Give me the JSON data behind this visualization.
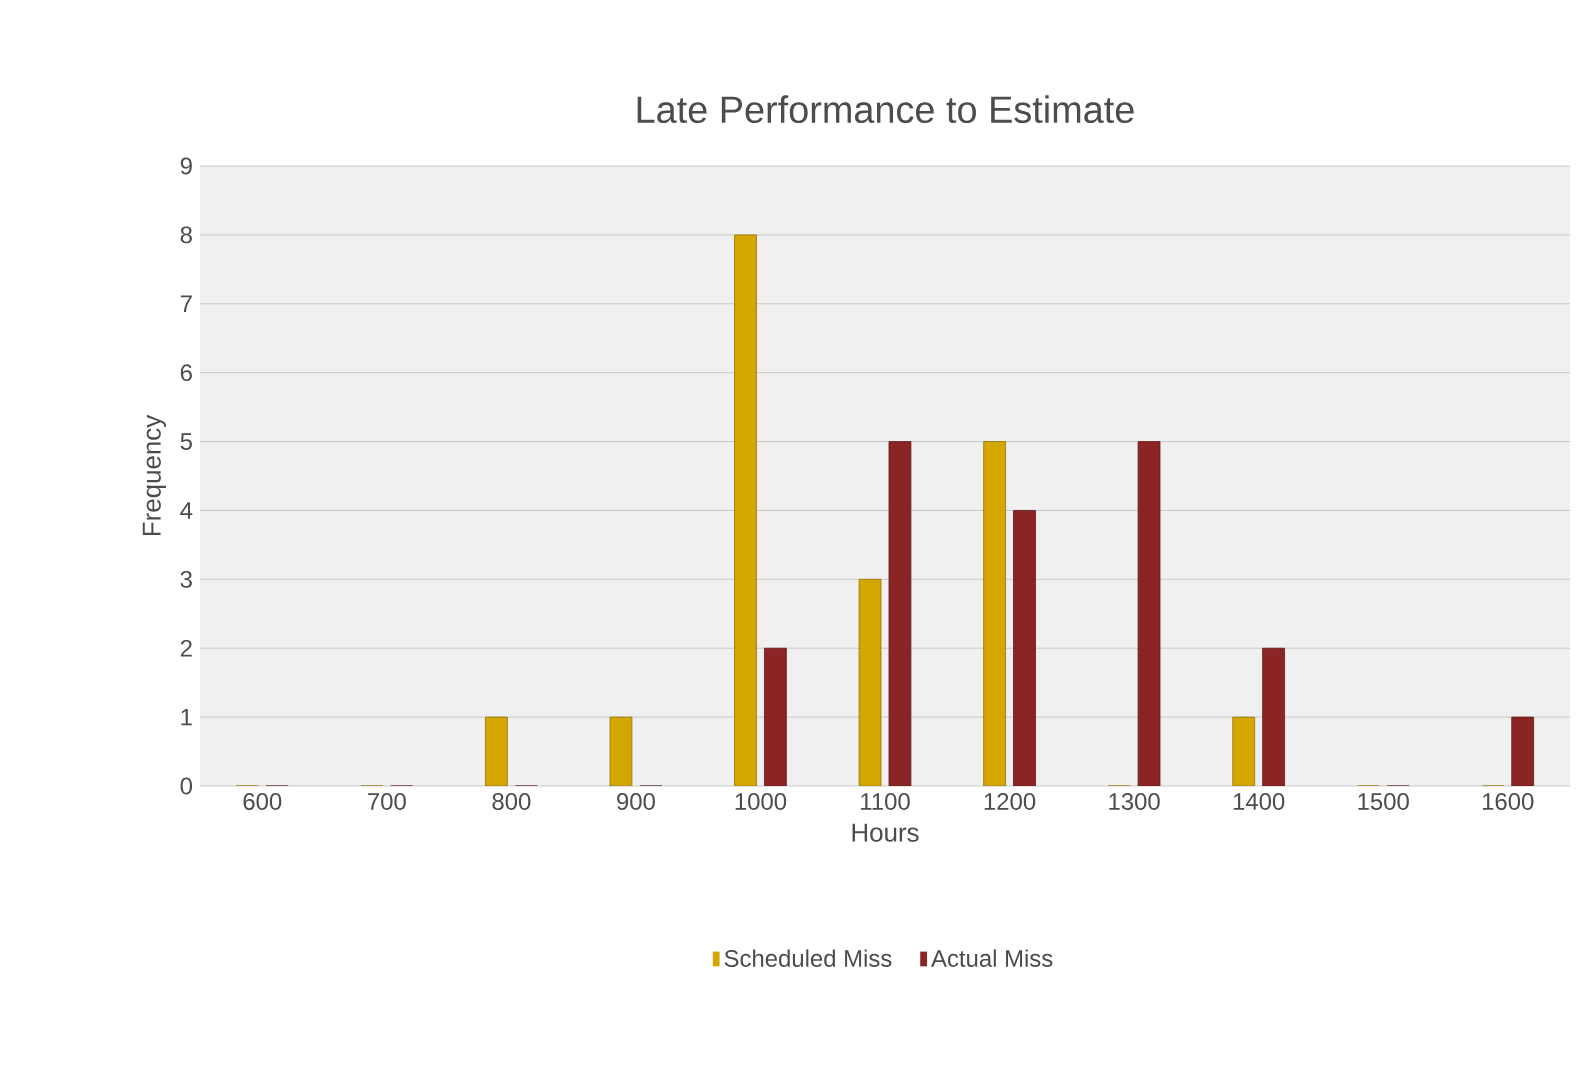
{
  "chart_data": {
    "type": "bar",
    "title": "Late Performance to Estimate",
    "xlabel": "Hours",
    "ylabel": "Frequency",
    "categories": [
      "600",
      "700",
      "800",
      "900",
      "1000",
      "1100",
      "1200",
      "1300",
      "1400",
      "1500",
      "1600"
    ],
    "series": [
      {
        "name": "Scheduled Miss",
        "color": "#d4a600",
        "values": [
          0,
          0,
          1,
          1,
          8,
          3,
          5,
          0,
          1,
          0,
          0
        ]
      },
      {
        "name": "Actual Miss",
        "color": "#8b2525",
        "values": [
          0,
          0,
          0,
          0,
          2,
          5,
          4,
          5,
          2,
          0,
          1
        ]
      }
    ],
    "ylim": [
      0,
      9
    ],
    "yticks": [
      0,
      1,
      2,
      3,
      4,
      5,
      6,
      7,
      8,
      9
    ],
    "grid": "y",
    "legend": "bottom"
  }
}
